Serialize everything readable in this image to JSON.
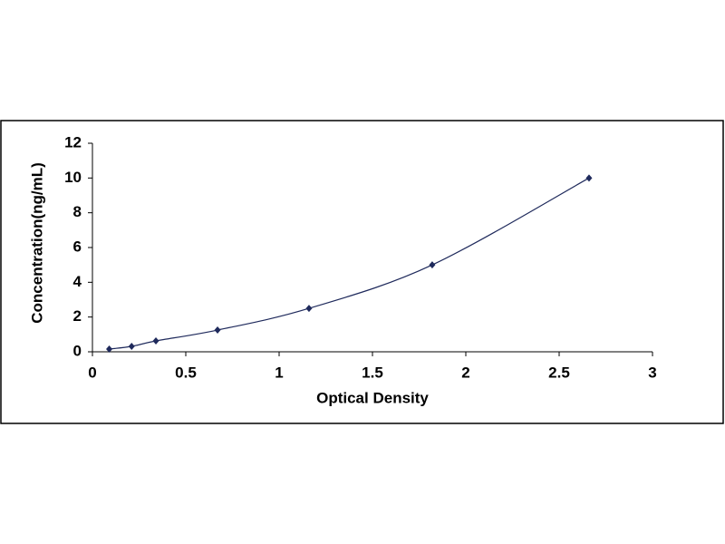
{
  "chart_data": {
    "type": "scatter",
    "x_label": "Optical Density",
    "y_label": "Concentration(ng/mL)",
    "x": [
      0.09,
      0.21,
      0.34,
      0.67,
      1.16,
      1.82,
      2.66
    ],
    "values": [
      0.156,
      0.312,
      0.625,
      1.25,
      2.5,
      5,
      10
    ],
    "color": "#1f2a5c",
    "smooth_line": true,
    "xlim": [
      0,
      3
    ],
    "xticks": [
      0,
      0.5,
      1,
      1.5,
      2,
      2.5,
      3
    ],
    "ylim": [
      0,
      12
    ],
    "yticks": [
      0,
      2,
      4,
      6,
      8,
      10,
      12
    ],
    "grid": false
  }
}
